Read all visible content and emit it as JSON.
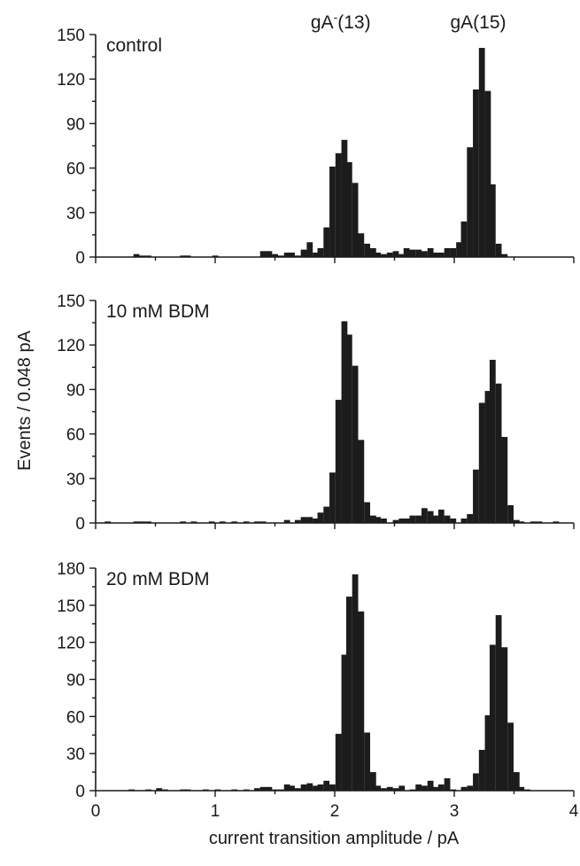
{
  "chart_data": {
    "type": "bar",
    "bin_width": 0.048,
    "xlabel": "current transition amplitude / pA",
    "ylabel": "Events / 0.048 pA",
    "xlim": [
      0,
      4
    ],
    "x_ticks": [
      0,
      1,
      2,
      3,
      4
    ],
    "peak_labels": [
      {
        "base": "gA",
        "sup": "-",
        "rest": "(13)",
        "x": 2.05
      },
      {
        "base": "gA(15)",
        "sup": "",
        "rest": "",
        "x": 3.2
      }
    ],
    "panels": [
      {
        "name": "control",
        "label": "control",
        "ylim": [
          0,
          150
        ],
        "y_ticks": [
          0,
          30,
          60,
          90,
          120,
          150
        ],
        "bins": [
          {
            "x": 0.34,
            "y": 2
          },
          {
            "x": 0.39,
            "y": 1
          },
          {
            "x": 0.44,
            "y": 1
          },
          {
            "x": 0.73,
            "y": 1
          },
          {
            "x": 0.77,
            "y": 1
          },
          {
            "x": 1.0,
            "y": 1
          },
          {
            "x": 1.4,
            "y": 4
          },
          {
            "x": 1.45,
            "y": 4
          },
          {
            "x": 1.5,
            "y": 2
          },
          {
            "x": 1.55,
            "y": 1
          },
          {
            "x": 1.6,
            "y": 3
          },
          {
            "x": 1.64,
            "y": 3
          },
          {
            "x": 1.69,
            "y": 1
          },
          {
            "x": 1.74,
            "y": 5
          },
          {
            "x": 1.79,
            "y": 10
          },
          {
            "x": 1.84,
            "y": 3
          },
          {
            "x": 1.88,
            "y": 6
          },
          {
            "x": 1.93,
            "y": 20
          },
          {
            "x": 1.98,
            "y": 61
          },
          {
            "x": 2.03,
            "y": 70
          },
          {
            "x": 2.08,
            "y": 79
          },
          {
            "x": 2.12,
            "y": 64
          },
          {
            "x": 2.17,
            "y": 50
          },
          {
            "x": 2.22,
            "y": 16
          },
          {
            "x": 2.27,
            "y": 9
          },
          {
            "x": 2.32,
            "y": 6
          },
          {
            "x": 2.36,
            "y": 3
          },
          {
            "x": 2.41,
            "y": 2
          },
          {
            "x": 2.46,
            "y": 3
          },
          {
            "x": 2.51,
            "y": 4
          },
          {
            "x": 2.56,
            "y": 2
          },
          {
            "x": 2.6,
            "y": 6
          },
          {
            "x": 2.65,
            "y": 5
          },
          {
            "x": 2.7,
            "y": 5
          },
          {
            "x": 2.75,
            "y": 4
          },
          {
            "x": 2.8,
            "y": 6
          },
          {
            "x": 2.84,
            "y": 3
          },
          {
            "x": 2.89,
            "y": 3
          },
          {
            "x": 2.94,
            "y": 6
          },
          {
            "x": 2.99,
            "y": 6
          },
          {
            "x": 3.04,
            "y": 10
          },
          {
            "x": 3.08,
            "y": 24
          },
          {
            "x": 3.13,
            "y": 74
          },
          {
            "x": 3.18,
            "y": 113
          },
          {
            "x": 3.23,
            "y": 141
          },
          {
            "x": 3.28,
            "y": 112
          },
          {
            "x": 3.32,
            "y": 49
          },
          {
            "x": 3.37,
            "y": 9
          },
          {
            "x": 3.42,
            "y": 2
          }
        ]
      },
      {
        "name": "10mM",
        "label": "10 mM BDM",
        "ylim": [
          0,
          150
        ],
        "y_ticks": [
          0,
          30,
          60,
          90,
          120,
          150
        ],
        "bins": [
          {
            "x": 0.1,
            "y": 1
          },
          {
            "x": 0.34,
            "y": 1
          },
          {
            "x": 0.39,
            "y": 1
          },
          {
            "x": 0.44,
            "y": 1
          },
          {
            "x": 0.73,
            "y": 1
          },
          {
            "x": 0.82,
            "y": 1
          },
          {
            "x": 0.97,
            "y": 1
          },
          {
            "x": 1.06,
            "y": 1
          },
          {
            "x": 1.16,
            "y": 1
          },
          {
            "x": 1.26,
            "y": 1
          },
          {
            "x": 1.35,
            "y": 1
          },
          {
            "x": 1.4,
            "y": 1
          },
          {
            "x": 1.6,
            "y": 2
          },
          {
            "x": 1.69,
            "y": 2
          },
          {
            "x": 1.74,
            "y": 4
          },
          {
            "x": 1.79,
            "y": 4
          },
          {
            "x": 1.84,
            "y": 3
          },
          {
            "x": 1.88,
            "y": 7
          },
          {
            "x": 1.93,
            "y": 11
          },
          {
            "x": 1.98,
            "y": 34
          },
          {
            "x": 2.03,
            "y": 83
          },
          {
            "x": 2.08,
            "y": 136
          },
          {
            "x": 2.12,
            "y": 127
          },
          {
            "x": 2.17,
            "y": 106
          },
          {
            "x": 2.22,
            "y": 56
          },
          {
            "x": 2.27,
            "y": 14
          },
          {
            "x": 2.32,
            "y": 5
          },
          {
            "x": 2.36,
            "y": 4
          },
          {
            "x": 2.41,
            "y": 3
          },
          {
            "x": 2.51,
            "y": 2
          },
          {
            "x": 2.56,
            "y": 3
          },
          {
            "x": 2.6,
            "y": 3
          },
          {
            "x": 2.65,
            "y": 5
          },
          {
            "x": 2.7,
            "y": 5
          },
          {
            "x": 2.75,
            "y": 10
          },
          {
            "x": 2.8,
            "y": 8
          },
          {
            "x": 2.84,
            "y": 5
          },
          {
            "x": 2.89,
            "y": 9
          },
          {
            "x": 2.94,
            "y": 5
          },
          {
            "x": 2.99,
            "y": 3
          },
          {
            "x": 3.08,
            "y": 3
          },
          {
            "x": 3.13,
            "y": 6
          },
          {
            "x": 3.18,
            "y": 36
          },
          {
            "x": 3.23,
            "y": 81
          },
          {
            "x": 3.28,
            "y": 89
          },
          {
            "x": 3.32,
            "y": 110
          },
          {
            "x": 3.37,
            "y": 94
          },
          {
            "x": 3.42,
            "y": 58
          },
          {
            "x": 3.47,
            "y": 12
          },
          {
            "x": 3.52,
            "y": 2
          },
          {
            "x": 3.56,
            "y": 1
          },
          {
            "x": 3.66,
            "y": 1
          },
          {
            "x": 3.71,
            "y": 1
          },
          {
            "x": 3.85,
            "y": 1
          }
        ]
      },
      {
        "name": "20mM",
        "label": "20 mM BDM",
        "ylim": [
          0,
          180
        ],
        "y_ticks": [
          0,
          30,
          60,
          90,
          120,
          150,
          180
        ],
        "bins": [
          {
            "x": 0.3,
            "y": 1
          },
          {
            "x": 0.44,
            "y": 1
          },
          {
            "x": 0.53,
            "y": 2
          },
          {
            "x": 0.58,
            "y": 1
          },
          {
            "x": 0.73,
            "y": 1
          },
          {
            "x": 0.77,
            "y": 1
          },
          {
            "x": 0.92,
            "y": 1
          },
          {
            "x": 1.02,
            "y": 1
          },
          {
            "x": 1.16,
            "y": 1
          },
          {
            "x": 1.26,
            "y": 1
          },
          {
            "x": 1.35,
            "y": 2
          },
          {
            "x": 1.4,
            "y": 3
          },
          {
            "x": 1.45,
            "y": 3
          },
          {
            "x": 1.5,
            "y": 1
          },
          {
            "x": 1.55,
            "y": 1
          },
          {
            "x": 1.6,
            "y": 5
          },
          {
            "x": 1.64,
            "y": 4
          },
          {
            "x": 1.69,
            "y": 2
          },
          {
            "x": 1.74,
            "y": 5
          },
          {
            "x": 1.79,
            "y": 6
          },
          {
            "x": 1.84,
            "y": 4
          },
          {
            "x": 1.88,
            "y": 5
          },
          {
            "x": 1.93,
            "y": 8
          },
          {
            "x": 1.98,
            "y": 5
          },
          {
            "x": 2.03,
            "y": 46
          },
          {
            "x": 2.08,
            "y": 110
          },
          {
            "x": 2.12,
            "y": 157
          },
          {
            "x": 2.17,
            "y": 175
          },
          {
            "x": 2.22,
            "y": 145
          },
          {
            "x": 2.27,
            "y": 47
          },
          {
            "x": 2.32,
            "y": 15
          },
          {
            "x": 2.36,
            "y": 4
          },
          {
            "x": 2.41,
            "y": 2
          },
          {
            "x": 2.46,
            "y": 3
          },
          {
            "x": 2.51,
            "y": 2
          },
          {
            "x": 2.56,
            "y": 4
          },
          {
            "x": 2.65,
            "y": 1
          },
          {
            "x": 2.7,
            "y": 5
          },
          {
            "x": 2.75,
            "y": 4
          },
          {
            "x": 2.8,
            "y": 8
          },
          {
            "x": 2.84,
            "y": 3
          },
          {
            "x": 2.89,
            "y": 5
          },
          {
            "x": 2.94,
            "y": 10
          },
          {
            "x": 2.99,
            "y": 1
          },
          {
            "x": 3.08,
            "y": 3
          },
          {
            "x": 3.13,
            "y": 4
          },
          {
            "x": 3.18,
            "y": 14
          },
          {
            "x": 3.23,
            "y": 33
          },
          {
            "x": 3.28,
            "y": 61
          },
          {
            "x": 3.32,
            "y": 118
          },
          {
            "x": 3.37,
            "y": 142
          },
          {
            "x": 3.42,
            "y": 116
          },
          {
            "x": 3.47,
            "y": 55
          },
          {
            "x": 3.52,
            "y": 15
          },
          {
            "x": 3.56,
            "y": 3
          },
          {
            "x": 3.61,
            "y": 1
          }
        ]
      }
    ]
  }
}
